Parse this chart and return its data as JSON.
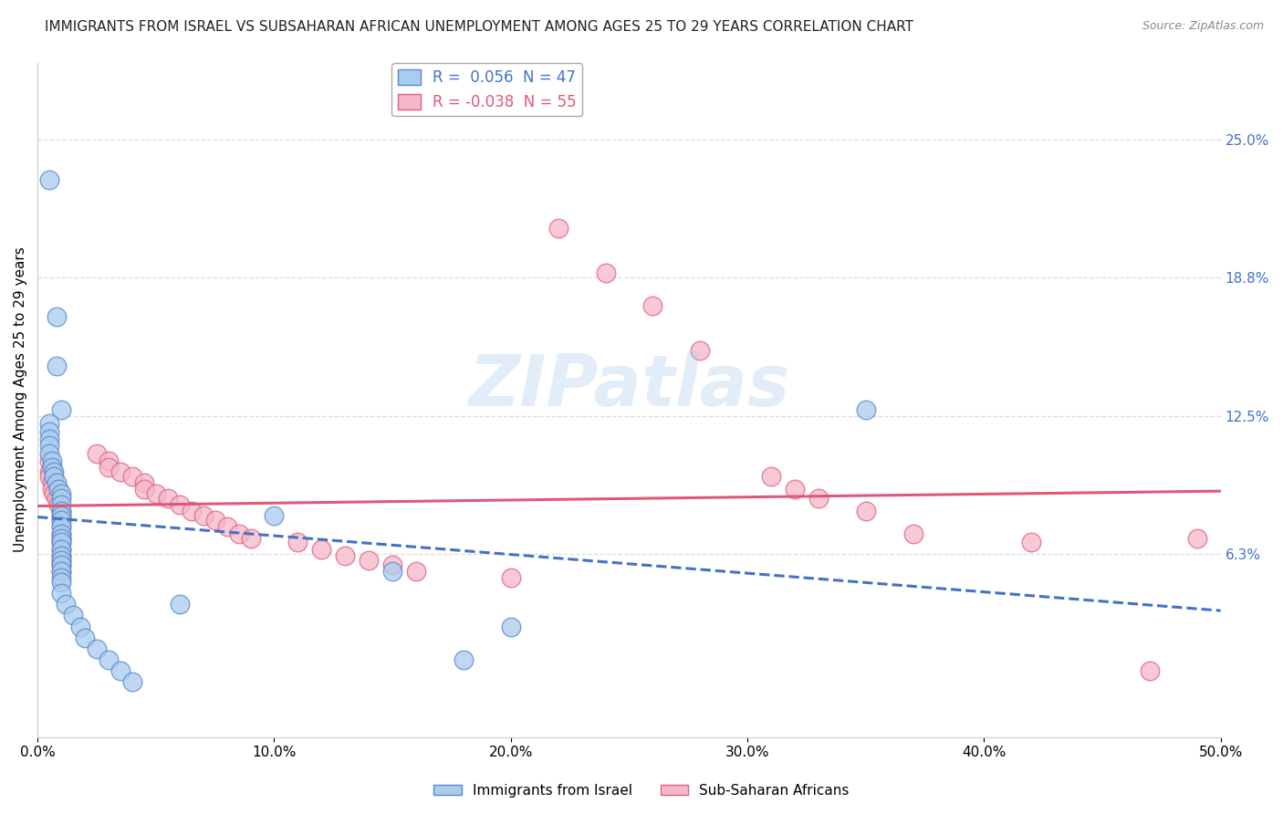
{
  "title": "IMMIGRANTS FROM ISRAEL VS SUBSAHARAN AFRICAN UNEMPLOYMENT AMONG AGES 25 TO 29 YEARS CORRELATION CHART",
  "source": "Source: ZipAtlas.com",
  "ylabel": "Unemployment Among Ages 25 to 29 years",
  "xlim": [
    0.0,
    0.5
  ],
  "ylim": [
    -0.02,
    0.285
  ],
  "xticklabels": [
    "0.0%",
    "10.0%",
    "20.0%",
    "30.0%",
    "40.0%",
    "50.0%"
  ],
  "xtick_vals": [
    0.0,
    0.1,
    0.2,
    0.3,
    0.4,
    0.5
  ],
  "ytick_right_vals": [
    0.063,
    0.125,
    0.188,
    0.25
  ],
  "ytick_right_labels": [
    "6.3%",
    "12.5%",
    "18.8%",
    "25.0%"
  ],
  "blue_R": 0.056,
  "blue_N": 47,
  "pink_R": -0.038,
  "pink_N": 55,
  "blue_color": "#aaccee",
  "pink_color": "#f5b8c8",
  "blue_edge_color": "#5588cc",
  "pink_edge_color": "#e06080",
  "blue_line_color": "#4472c4",
  "pink_line_color": "#e05878",
  "blue_scatter": [
    [
      0.005,
      0.232
    ],
    [
      0.008,
      0.17
    ],
    [
      0.008,
      0.148
    ],
    [
      0.01,
      0.128
    ],
    [
      0.005,
      0.122
    ],
    [
      0.005,
      0.118
    ],
    [
      0.005,
      0.115
    ],
    [
      0.005,
      0.112
    ],
    [
      0.005,
      0.108
    ],
    [
      0.006,
      0.105
    ],
    [
      0.006,
      0.102
    ],
    [
      0.007,
      0.1
    ],
    [
      0.007,
      0.098
    ],
    [
      0.008,
      0.095
    ],
    [
      0.009,
      0.092
    ],
    [
      0.01,
      0.09
    ],
    [
      0.01,
      0.088
    ],
    [
      0.01,
      0.085
    ],
    [
      0.01,
      0.082
    ],
    [
      0.01,
      0.08
    ],
    [
      0.01,
      0.078
    ],
    [
      0.01,
      0.075
    ],
    [
      0.01,
      0.072
    ],
    [
      0.01,
      0.07
    ],
    [
      0.01,
      0.068
    ],
    [
      0.01,
      0.065
    ],
    [
      0.01,
      0.062
    ],
    [
      0.01,
      0.06
    ],
    [
      0.01,
      0.058
    ],
    [
      0.01,
      0.055
    ],
    [
      0.01,
      0.052
    ],
    [
      0.01,
      0.05
    ],
    [
      0.01,
      0.045
    ],
    [
      0.012,
      0.04
    ],
    [
      0.015,
      0.035
    ],
    [
      0.018,
      0.03
    ],
    [
      0.02,
      0.025
    ],
    [
      0.025,
      0.02
    ],
    [
      0.03,
      0.015
    ],
    [
      0.035,
      0.01
    ],
    [
      0.04,
      0.005
    ],
    [
      0.06,
      0.04
    ],
    [
      0.1,
      0.08
    ],
    [
      0.15,
      0.055
    ],
    [
      0.18,
      0.015
    ],
    [
      0.2,
      0.03
    ],
    [
      0.35,
      0.128
    ]
  ],
  "pink_scatter": [
    [
      0.005,
      0.105
    ],
    [
      0.005,
      0.1
    ],
    [
      0.005,
      0.098
    ],
    [
      0.006,
      0.095
    ],
    [
      0.006,
      0.092
    ],
    [
      0.007,
      0.09
    ],
    [
      0.008,
      0.088
    ],
    [
      0.009,
      0.085
    ],
    [
      0.01,
      0.082
    ],
    [
      0.01,
      0.08
    ],
    [
      0.01,
      0.078
    ],
    [
      0.01,
      0.075
    ],
    [
      0.01,
      0.072
    ],
    [
      0.01,
      0.07
    ],
    [
      0.01,
      0.068
    ],
    [
      0.01,
      0.065
    ],
    [
      0.01,
      0.062
    ],
    [
      0.01,
      0.06
    ],
    [
      0.01,
      0.058
    ],
    [
      0.01,
      0.055
    ],
    [
      0.025,
      0.108
    ],
    [
      0.03,
      0.105
    ],
    [
      0.03,
      0.102
    ],
    [
      0.035,
      0.1
    ],
    [
      0.04,
      0.098
    ],
    [
      0.045,
      0.095
    ],
    [
      0.045,
      0.092
    ],
    [
      0.05,
      0.09
    ],
    [
      0.055,
      0.088
    ],
    [
      0.06,
      0.085
    ],
    [
      0.065,
      0.082
    ],
    [
      0.07,
      0.08
    ],
    [
      0.075,
      0.078
    ],
    [
      0.08,
      0.075
    ],
    [
      0.085,
      0.072
    ],
    [
      0.09,
      0.07
    ],
    [
      0.11,
      0.068
    ],
    [
      0.12,
      0.065
    ],
    [
      0.13,
      0.062
    ],
    [
      0.14,
      0.06
    ],
    [
      0.15,
      0.058
    ],
    [
      0.16,
      0.055
    ],
    [
      0.2,
      0.052
    ],
    [
      0.22,
      0.21
    ],
    [
      0.24,
      0.19
    ],
    [
      0.26,
      0.175
    ],
    [
      0.28,
      0.155
    ],
    [
      0.31,
      0.098
    ],
    [
      0.32,
      0.092
    ],
    [
      0.33,
      0.088
    ],
    [
      0.35,
      0.082
    ],
    [
      0.37,
      0.072
    ],
    [
      0.42,
      0.068
    ],
    [
      0.47,
      0.01
    ],
    [
      0.49,
      0.07
    ]
  ],
  "background_color": "#ffffff",
  "grid_color": "#dddddd",
  "watermark_text": "ZIPatlas",
  "title_fontsize": 11,
  "label_fontsize": 11,
  "tick_fontsize": 11
}
